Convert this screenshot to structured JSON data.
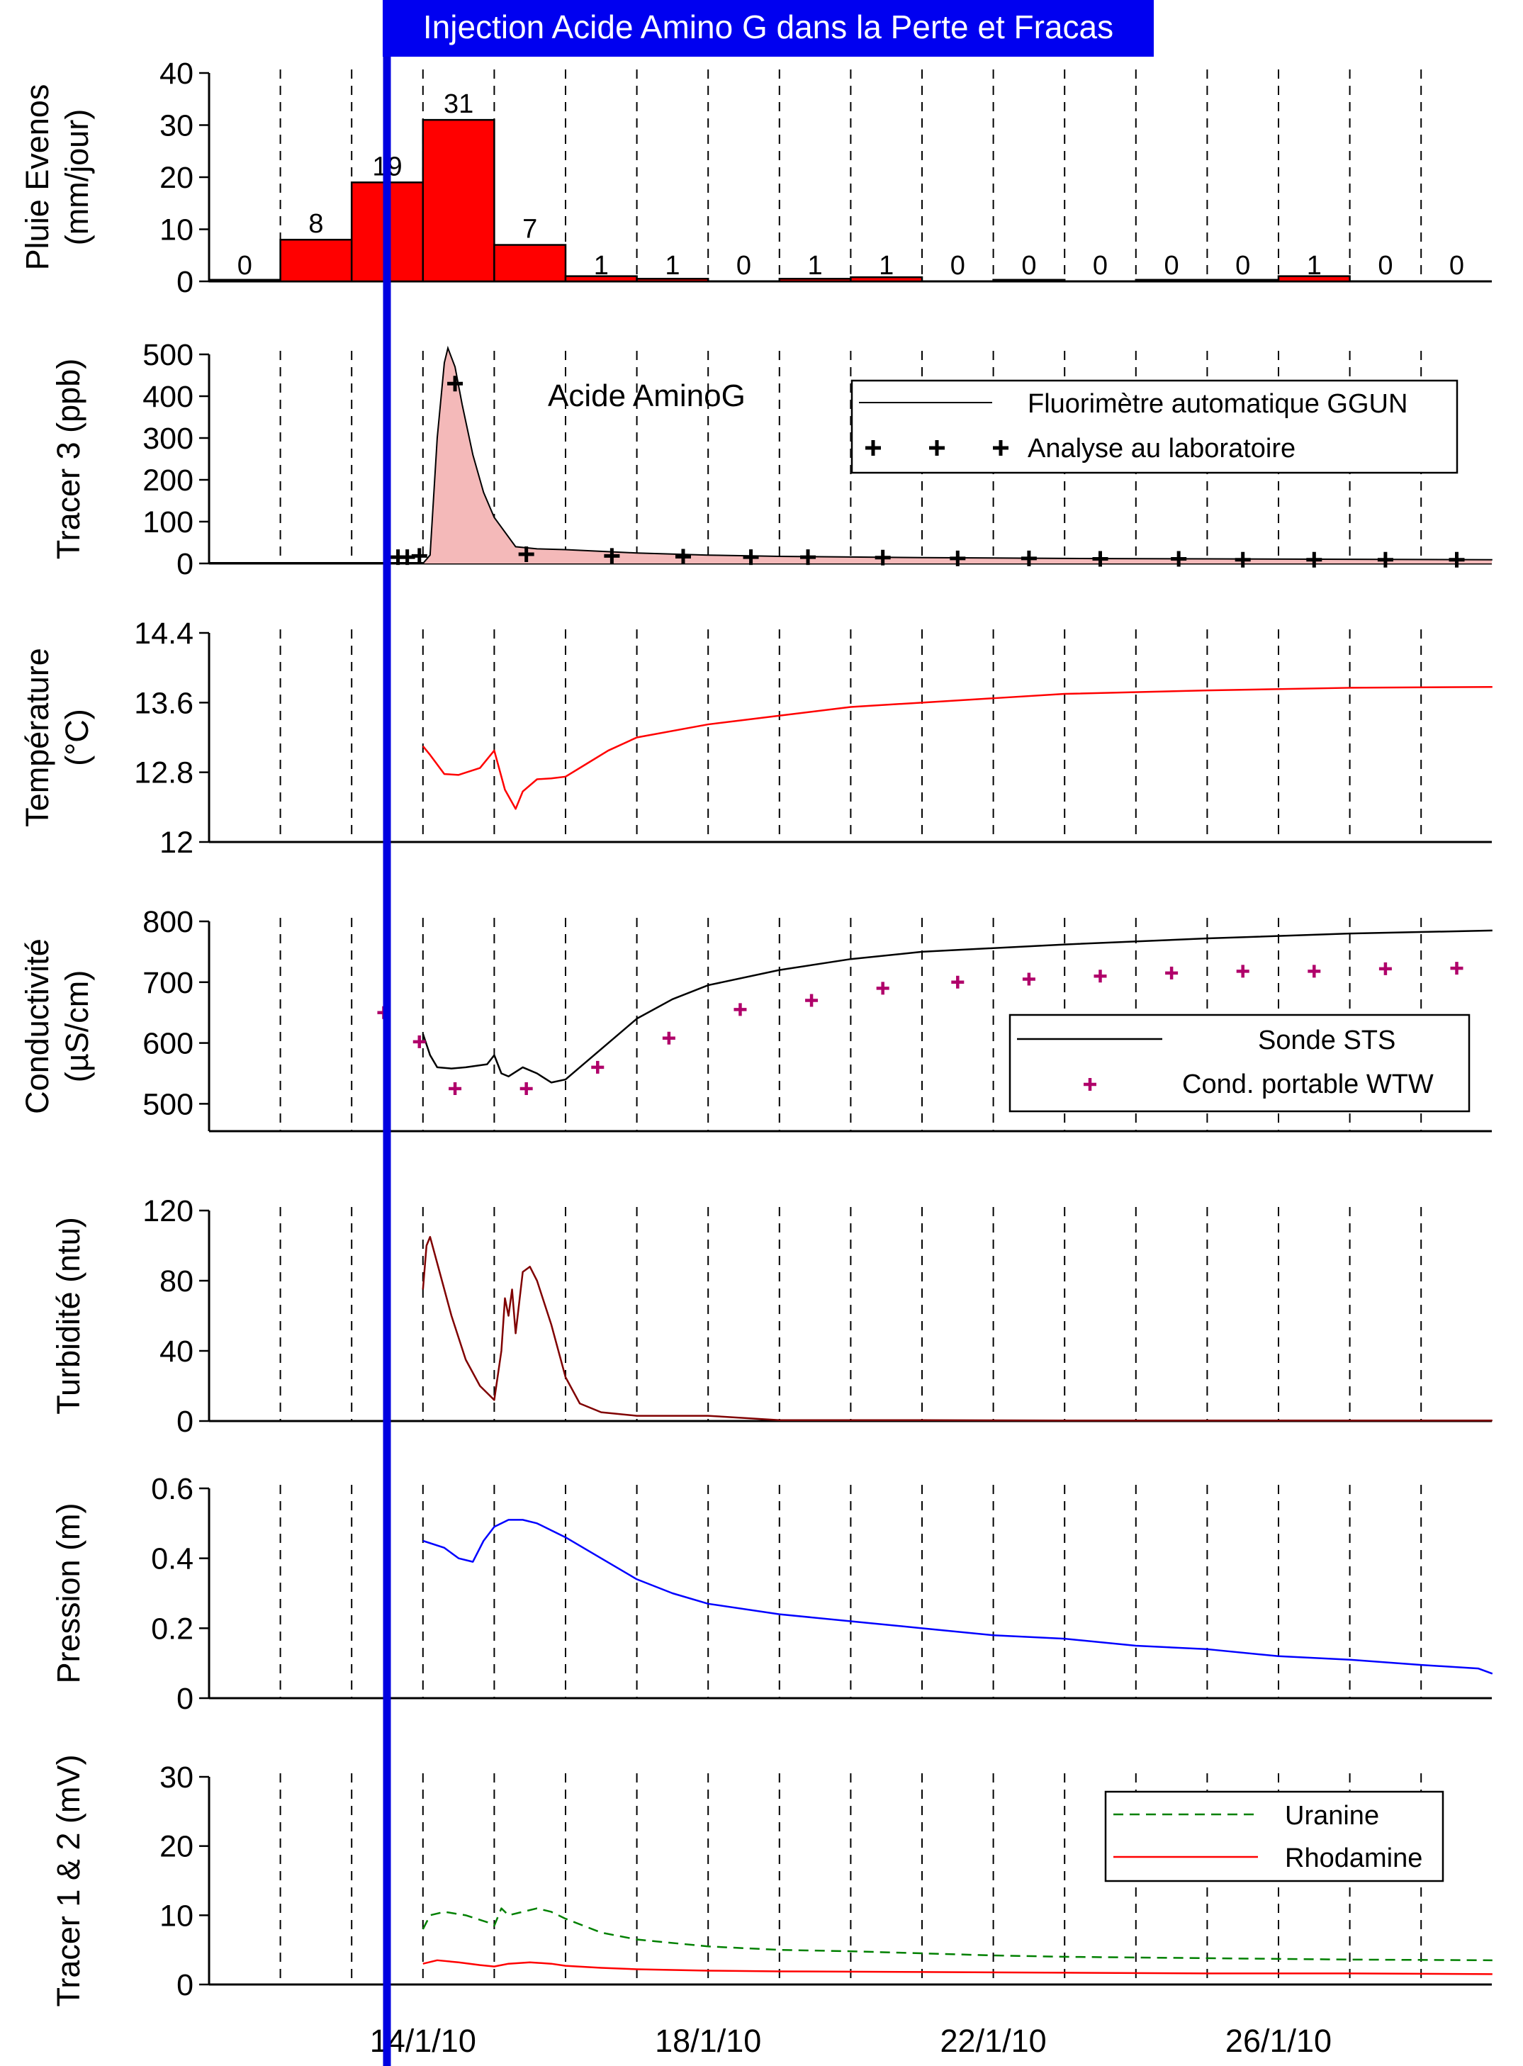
{
  "banner": "Injection Acide Amino G dans la Perte et Fracas",
  "x_tick_labels": [
    "14/1/10",
    "18/1/10",
    "22/1/10",
    "26/1/10"
  ],
  "chart_data": [
    {
      "type": "bar",
      "id": "rain",
      "ylabel_lines": [
        "Pluie Evenos",
        "(mm/jour)"
      ],
      "ylim": [
        0,
        40
      ],
      "yticks": [
        "0",
        "10",
        "20",
        "30",
        "40"
      ],
      "days": [
        0,
        1,
        2,
        3,
        4,
        5,
        6,
        7,
        8,
        9,
        10,
        11,
        12,
        13,
        14,
        15,
        16,
        17
      ],
      "values": [
        0.3,
        8,
        19,
        31,
        7,
        1,
        0.5,
        0,
        0.5,
        0.8,
        0,
        0.3,
        0,
        0.3,
        0.3,
        1,
        0,
        0
      ],
      "labels": [
        "0",
        "8",
        "19",
        "31",
        "7",
        "1",
        "1",
        "0",
        "1",
        "1",
        "0",
        "0",
        "0",
        "0",
        "0",
        "1",
        "0",
        "0"
      ]
    },
    {
      "type": "area",
      "id": "tracer3",
      "ylabel_lines": [
        "Tracer 3 (ppb)"
      ],
      "ylim": [
        0,
        500
      ],
      "yticks": [
        "0",
        "100",
        "200",
        "300",
        "400",
        "500"
      ],
      "annotation": "Acide AminoG",
      "series": [
        {
          "name": "Fluorimètre automatique GGUN",
          "x": [
            3.0,
            3.1,
            3.2,
            3.3,
            3.35,
            3.45,
            3.55,
            3.7,
            3.85,
            4.0,
            4.3,
            4.6,
            5.0,
            6.0,
            7.0,
            8.0,
            10.0,
            12.0,
            14.0,
            16.0,
            18.0
          ],
          "y": [
            0,
            20,
            300,
            480,
            515,
            470,
            380,
            260,
            170,
            110,
            40,
            35,
            33,
            25,
            20,
            17,
            14,
            12,
            11,
            10,
            9
          ]
        },
        {
          "name": "Analyse au laboratoire",
          "x": [
            2.65,
            2.78,
            2.95,
            3.45,
            4.45,
            5.65,
            6.65,
            7.6,
            8.4,
            9.45,
            10.5,
            11.5,
            12.5,
            13.6,
            14.5,
            15.5,
            16.5,
            17.5
          ],
          "y": [
            15,
            15,
            18,
            430,
            22,
            18,
            16,
            15,
            15,
            14,
            12,
            12,
            11,
            11,
            9,
            9,
            9,
            9
          ]
        }
      ]
    },
    {
      "type": "line",
      "id": "temperature",
      "ylabel_lines": [
        "Température",
        "(°C)"
      ],
      "ylim": [
        12,
        14.4
      ],
      "yticks": [
        "12",
        "12.8",
        "13.6",
        "14.4"
      ],
      "series": [
        {
          "name": "Température",
          "x": [
            3.0,
            3.1,
            3.3,
            3.5,
            3.8,
            4.0,
            4.05,
            4.15,
            4.3,
            4.4,
            4.6,
            4.8,
            5.0,
            5.3,
            5.6,
            6.0,
            7.0,
            8.0,
            9.0,
            10.0,
            11.0,
            12.0,
            14.0,
            16.0,
            18.0
          ],
          "y": [
            13.1,
            13.0,
            12.78,
            12.77,
            12.85,
            13.05,
            12.9,
            12.6,
            12.38,
            12.58,
            12.72,
            12.73,
            12.75,
            12.9,
            13.05,
            13.2,
            13.35,
            13.45,
            13.55,
            13.6,
            13.65,
            13.7,
            13.74,
            13.77,
            13.78
          ]
        }
      ]
    },
    {
      "type": "line",
      "id": "conductivity",
      "ylabel_lines": [
        "Conductivité",
        "(µS/cm)"
      ],
      "ylim": [
        455,
        800
      ],
      "yticks": [
        "500",
        "600",
        "700",
        "800"
      ],
      "series": [
        {
          "name": "Sonde STS",
          "x": [
            3.0,
            3.1,
            3.2,
            3.4,
            3.6,
            3.9,
            4.0,
            4.1,
            4.2,
            4.4,
            4.6,
            4.8,
            5.0,
            5.5,
            6.0,
            6.5,
            7.0,
            8.0,
            9.0,
            10.0,
            12.0,
            14.0,
            16.0,
            18.0
          ],
          "y": [
            615,
            580,
            560,
            558,
            560,
            565,
            580,
            550,
            545,
            560,
            550,
            535,
            540,
            590,
            640,
            672,
            695,
            720,
            738,
            750,
            762,
            772,
            780,
            785
          ]
        },
        {
          "name": "Cond. portable WTW",
          "x": [
            2.45,
            2.95,
            3.45,
            4.45,
            5.45,
            6.45,
            7.45,
            8.45,
            9.45,
            10.5,
            11.5,
            12.5,
            13.5,
            14.5,
            15.5,
            16.5,
            17.5
          ],
          "y": [
            650,
            602,
            525,
            525,
            560,
            608,
            655,
            670,
            690,
            700,
            705,
            710,
            715,
            718,
            718,
            722,
            723
          ]
        }
      ]
    },
    {
      "type": "line",
      "id": "turbidity",
      "ylabel_lines": [
        "Turbidité (ntu)"
      ],
      "ylim": [
        0,
        120
      ],
      "yticks": [
        "0",
        "40",
        "80",
        "120"
      ],
      "series": [
        {
          "name": "Turbidité",
          "x": [
            3.0,
            3.05,
            3.1,
            3.2,
            3.4,
            3.6,
            3.8,
            4.0,
            4.1,
            4.15,
            4.2,
            4.25,
            4.3,
            4.4,
            4.5,
            4.6,
            4.8,
            5.0,
            5.2,
            5.5,
            6.0,
            6.5,
            7.0,
            8.0,
            10.0,
            12.0,
            14.0,
            16.0,
            18.0
          ],
          "y": [
            75,
            100,
            105,
            90,
            60,
            35,
            20,
            12,
            40,
            70,
            60,
            75,
            50,
            85,
            88,
            80,
            55,
            25,
            10,
            5,
            3,
            3,
            3,
            0.5,
            0.5,
            0.3,
            0.3,
            0.3,
            0.3
          ]
        }
      ]
    },
    {
      "type": "line",
      "id": "pressure",
      "ylabel_lines": [
        "Pression (m)"
      ],
      "ylim": [
        0,
        0.6
      ],
      "yticks": [
        "0",
        "0.2",
        "0.4",
        "0.6"
      ],
      "series": [
        {
          "name": "Pression",
          "x": [
            3.0,
            3.3,
            3.5,
            3.7,
            3.85,
            4.0,
            4.2,
            4.4,
            4.6,
            4.8,
            5.0,
            5.5,
            6.0,
            6.5,
            7.0,
            8.0,
            9.0,
            10.0,
            11.0,
            12.0,
            13.0,
            14.0,
            15.0,
            16.0,
            17.0,
            17.8,
            18.0
          ],
          "y": [
            0.45,
            0.43,
            0.4,
            0.39,
            0.45,
            0.49,
            0.51,
            0.51,
            0.5,
            0.48,
            0.46,
            0.4,
            0.34,
            0.3,
            0.27,
            0.24,
            0.22,
            0.2,
            0.18,
            0.17,
            0.15,
            0.14,
            0.12,
            0.11,
            0.095,
            0.085,
            0.07
          ]
        }
      ]
    },
    {
      "type": "line",
      "id": "tracer12",
      "ylabel_lines": [
        "Tracer 1 & 2 (mV)"
      ],
      "ylim": [
        0,
        30
      ],
      "yticks": [
        "0",
        "10",
        "20",
        "30"
      ],
      "series": [
        {
          "name": "Uranine",
          "x": [
            3.0,
            3.1,
            3.3,
            3.6,
            3.9,
            4.0,
            4.1,
            4.2,
            4.4,
            4.6,
            4.8,
            5.0,
            5.5,
            6.0,
            7.0,
            8.0,
            9.0,
            10.0,
            11.0,
            12.0,
            14.0,
            16.0,
            18.0
          ],
          "y": [
            8,
            10,
            10.5,
            10,
            9,
            8.5,
            11,
            10,
            10.5,
            11,
            10.5,
            9.5,
            7.5,
            6.5,
            5.5,
            5,
            4.8,
            4.5,
            4.2,
            4,
            3.8,
            3.6,
            3.5
          ]
        },
        {
          "name": "Rhodamine",
          "x": [
            3.0,
            3.2,
            3.5,
            3.8,
            4.0,
            4.2,
            4.5,
            4.8,
            5.0,
            5.5,
            6.0,
            7.0,
            8.0,
            10.0,
            12.0,
            14.0,
            16.0,
            18.0
          ],
          "y": [
            3,
            3.5,
            3.2,
            2.8,
            2.6,
            3,
            3.2,
            3,
            2.7,
            2.4,
            2.2,
            2,
            1.9,
            1.8,
            1.7,
            1.6,
            1.6,
            1.5
          ]
        }
      ]
    }
  ],
  "colors": {
    "rain": "#ff0000",
    "tracer3_fill": "#f4b9b9",
    "temperature": "#ff0000",
    "conductivity_line": "#000000",
    "conductivity_points": "#b0006a",
    "turbidity": "#800000",
    "pressure": "#0000ff",
    "uranine": "#008000",
    "rhodamine": "#ff0000",
    "injection": "#0000e0"
  }
}
